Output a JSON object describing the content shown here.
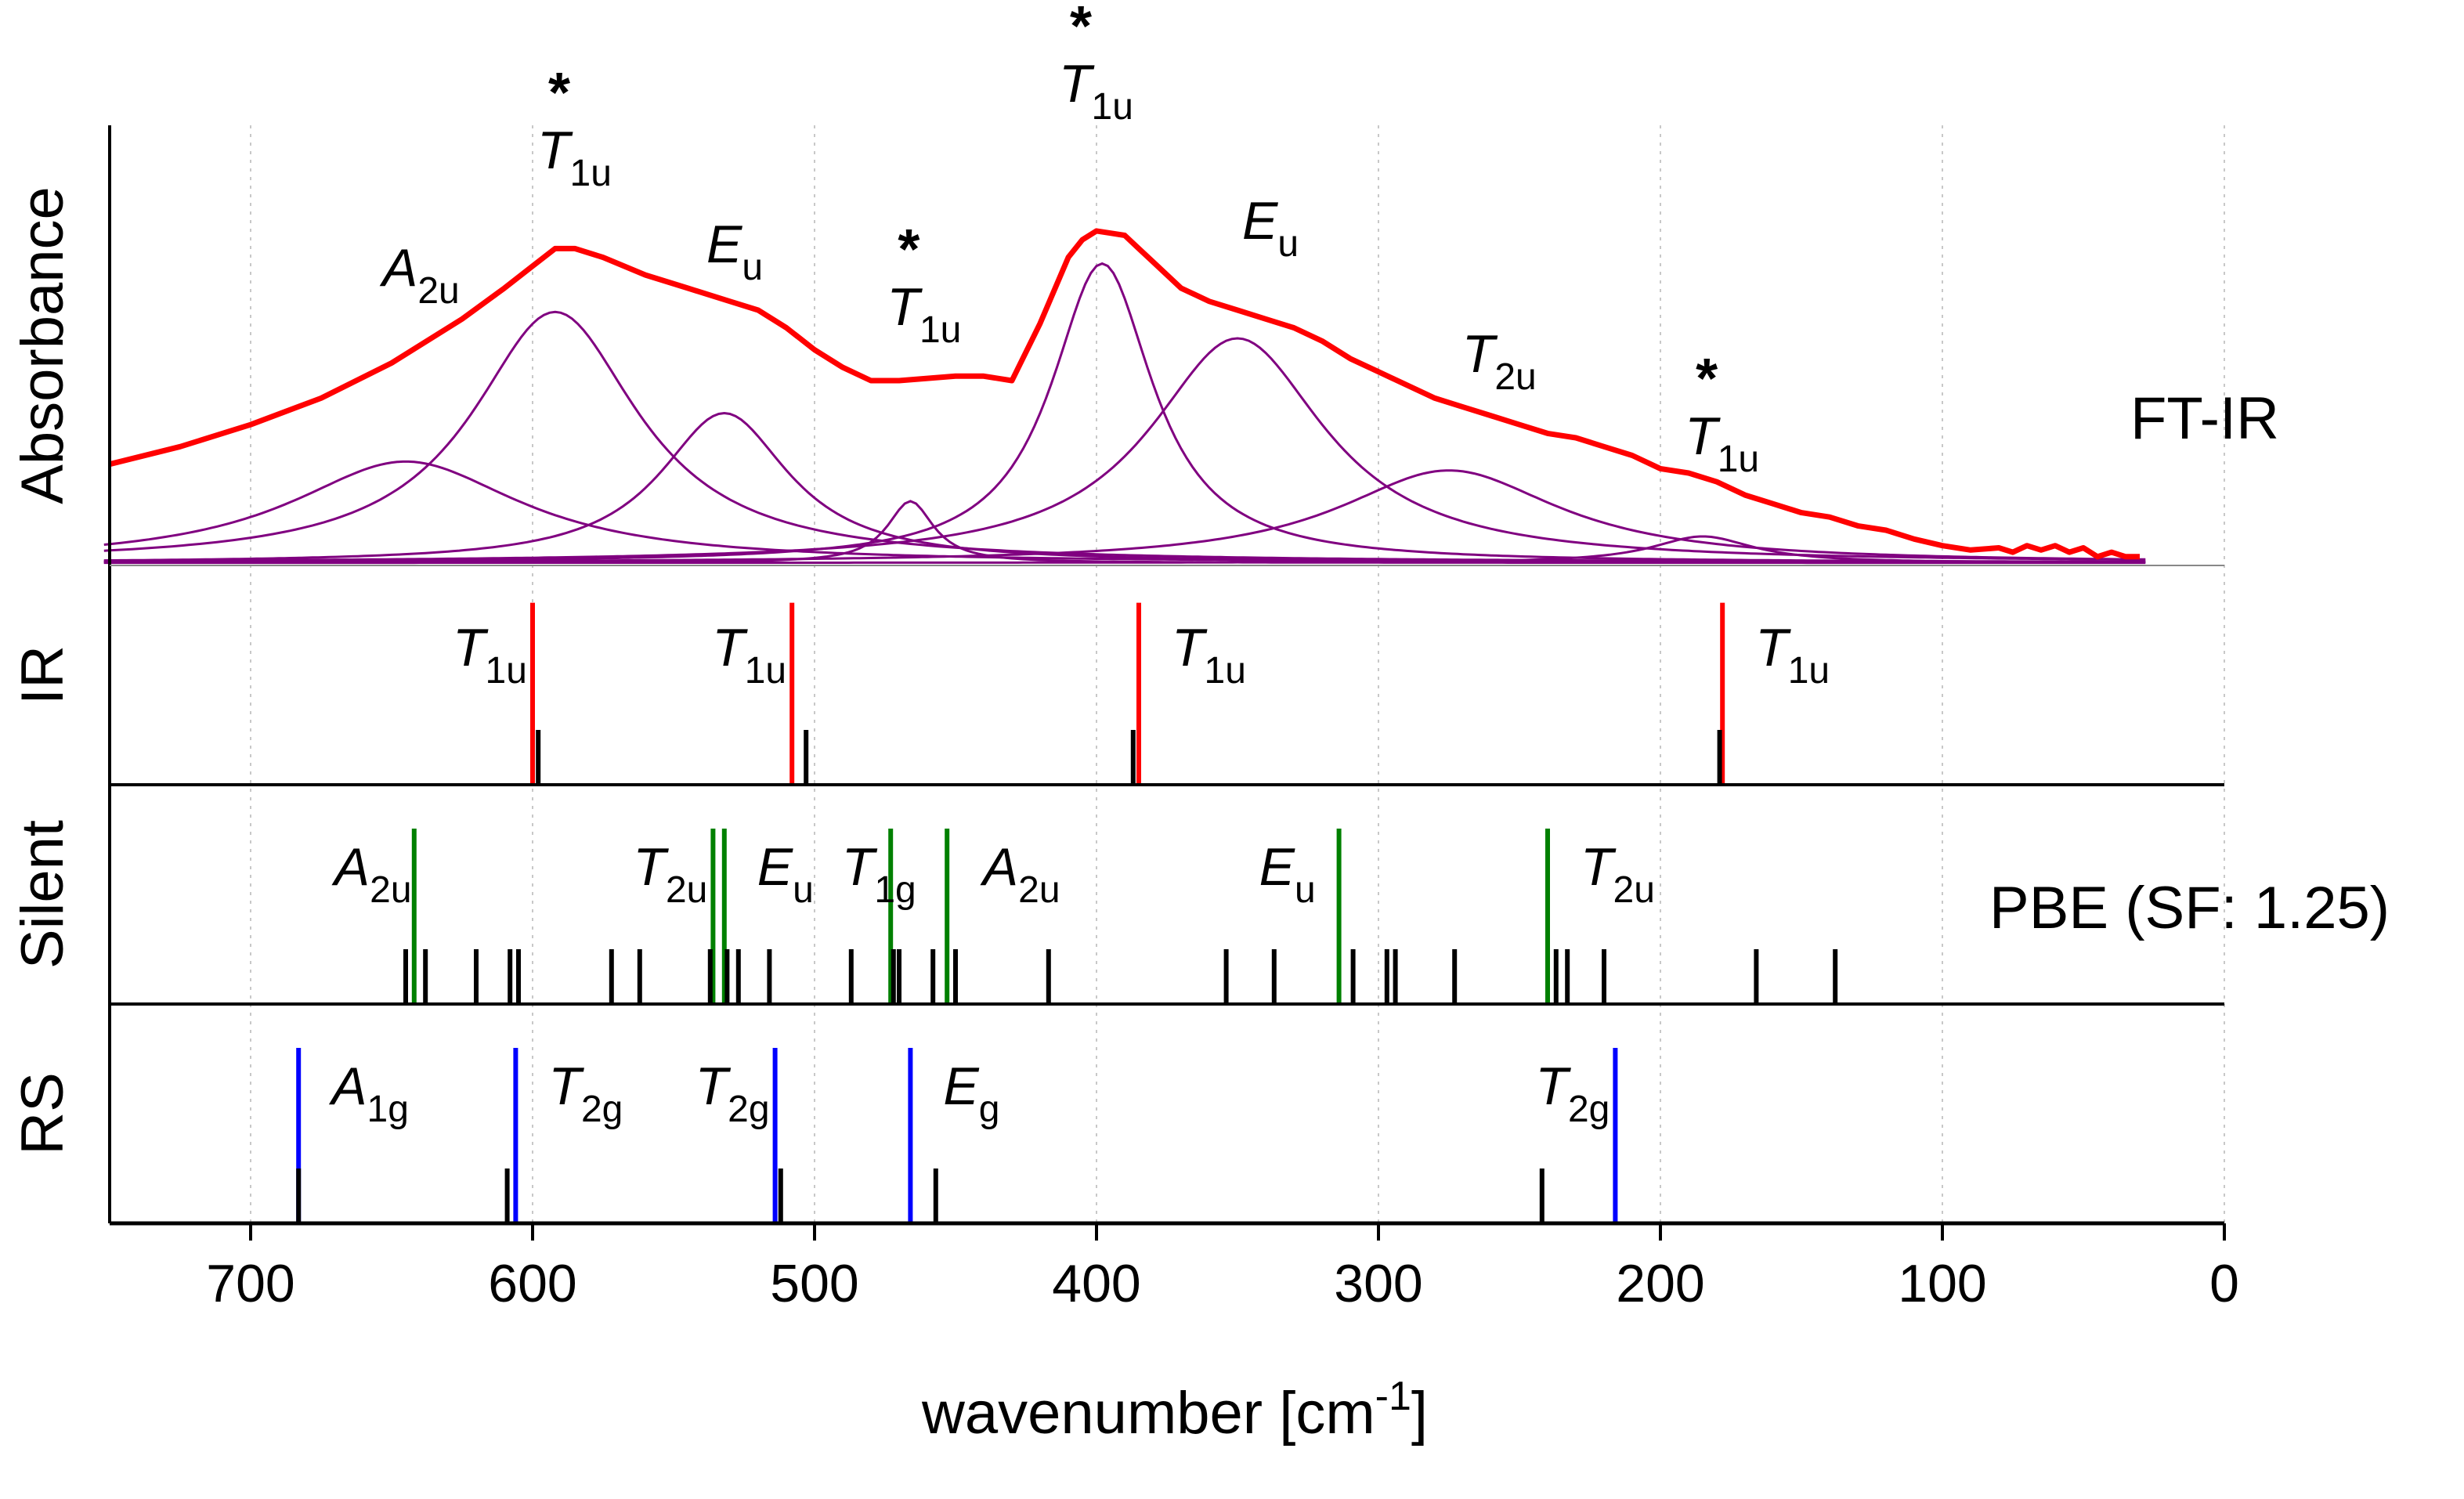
{
  "chart_data": {
    "type": "line",
    "xlabel": "wavenumber [cm",
    "xlabel_sup": "-1",
    "xlabel_end": "]",
    "xlim": [
      750,
      0
    ],
    "x_ticks": [
      700,
      600,
      500,
      400,
      300,
      200,
      100,
      0
    ],
    "panels": [
      {
        "name": "Absorbance",
        "annotation": "FT-IR",
        "ylim": [
          0,
          1.0
        ],
        "spectrum": {
          "name": "FT-IR",
          "color": "#ff0000",
          "x": [
            750,
            725,
            700,
            675,
            650,
            625,
            610,
            600,
            592,
            585,
            575,
            560,
            545,
            530,
            520,
            510,
            500,
            490,
            480,
            470,
            460,
            450,
            440,
            430,
            420,
            410,
            405,
            400,
            395,
            390,
            385,
            380,
            370,
            360,
            350,
            340,
            330,
            320,
            310,
            300,
            290,
            280,
            270,
            260,
            250,
            240,
            230,
            220,
            210,
            200,
            190,
            180,
            170,
            160,
            150,
            140,
            130,
            120,
            110,
            100,
            90,
            80,
            75,
            70,
            65,
            60,
            55,
            50,
            45,
            40,
            35,
            30
          ],
          "y": [
            0.23,
            0.27,
            0.32,
            0.38,
            0.46,
            0.56,
            0.63,
            0.68,
            0.72,
            0.72,
            0.7,
            0.66,
            0.63,
            0.6,
            0.58,
            0.54,
            0.49,
            0.45,
            0.42,
            0.42,
            0.425,
            0.43,
            0.43,
            0.42,
            0.55,
            0.7,
            0.74,
            0.76,
            0.755,
            0.75,
            0.72,
            0.69,
            0.63,
            0.6,
            0.58,
            0.56,
            0.54,
            0.51,
            0.47,
            0.44,
            0.41,
            0.38,
            0.36,
            0.34,
            0.32,
            0.3,
            0.29,
            0.27,
            0.25,
            0.22,
            0.21,
            0.19,
            0.16,
            0.14,
            0.12,
            0.11,
            0.09,
            0.08,
            0.06,
            0.045,
            0.035,
            0.04,
            0.03,
            0.045,
            0.035,
            0.045,
            0.03,
            0.04,
            0.02,
            0.03,
            0.02,
            0.02
          ]
        },
        "components": [
          {
            "name": "A2u",
            "center": 645,
            "height": 0.23,
            "width": 50,
            "color": "#800080"
          },
          {
            "name": "T1u",
            "center": 592,
            "height": 0.57,
            "width": 36,
            "color": "#800080"
          },
          {
            "name": "Eu",
            "center": 532,
            "height": 0.34,
            "width": 28,
            "color": "#800080"
          },
          {
            "name": "T1u",
            "center": 466,
            "height": 0.14,
            "width": 10,
            "color": "#800080"
          },
          {
            "name": "T1u",
            "center": 398,
            "height": 0.68,
            "width": 22,
            "color": "#800080"
          },
          {
            "name": "Eu",
            "center": 350,
            "height": 0.51,
            "width": 38,
            "color": "#800080"
          },
          {
            "name": "T2u",
            "center": 275,
            "height": 0.21,
            "width": 48,
            "color": "#800080"
          },
          {
            "name": "T1u",
            "center": 185,
            "height": 0.06,
            "width": 22,
            "color": "#800080"
          }
        ],
        "labels": [
          {
            "text": "A",
            "sub": "2u",
            "x": 645,
            "star": false
          },
          {
            "text": "T",
            "sub": "1u",
            "x": 590,
            "star": true
          },
          {
            "text": "E",
            "sub": "u",
            "x": 530,
            "star": false
          },
          {
            "text": "T",
            "sub": "1u",
            "x": 466,
            "star": true
          },
          {
            "text": "T",
            "sub": "1u",
            "x": 405,
            "star": true
          },
          {
            "text": "E",
            "sub": "u",
            "x": 340,
            "star": false
          },
          {
            "text": "T",
            "sub": "2u",
            "x": 262,
            "star": false
          },
          {
            "text": "T",
            "sub": "1u",
            "x": 183,
            "star": true
          }
        ]
      },
      {
        "name": "IR",
        "ylim": [
          0,
          1.0
        ],
        "calculated": {
          "color": "#ff0000",
          "x": [
            600,
            508,
            385,
            178
          ],
          "y": [
            0.83,
            0.83,
            0.83,
            0.83
          ]
        },
        "reference": {
          "color": "#000000",
          "x": [
            598,
            503,
            387,
            179
          ],
          "y": [
            0.25,
            0.25,
            0.25,
            0.25
          ]
        },
        "labels": [
          {
            "text": "T",
            "sub": "1u",
            "x": 620
          },
          {
            "text": "T",
            "sub": "1u",
            "x": 528
          },
          {
            "text": "T",
            "sub": "1u",
            "x": 365
          },
          {
            "text": "T",
            "sub": "1u",
            "x": 158
          }
        ]
      },
      {
        "name": "Silent",
        "annotation": "PBE (SF: 1.25)",
        "ylim": [
          0,
          1.0
        ],
        "calculated": {
          "color": "#008000",
          "x": [
            642,
            536,
            532,
            473,
            453,
            314,
            240
          ],
          "y": [
            0.8,
            0.8,
            0.8,
            0.8,
            0.8,
            0.8,
            0.8
          ]
        },
        "reference": {
          "color": "#000000",
          "x": [
            645,
            638,
            620,
            608,
            605,
            572,
            562,
            537,
            531,
            527,
            516,
            487,
            472,
            470,
            458,
            450,
            417,
            354,
            337,
            309,
            297,
            294,
            273,
            237,
            233,
            220,
            166,
            138
          ],
          "y": [
            0.25,
            0.25,
            0.25,
            0.25,
            0.25,
            0.25,
            0.25,
            0.25,
            0.25,
            0.25,
            0.25,
            0.25,
            0.25,
            0.25,
            0.25,
            0.25,
            0.25,
            0.25,
            0.25,
            0.25,
            0.25,
            0.25,
            0.25,
            0.25,
            0.25,
            0.25,
            0.25,
            0.25
          ]
        },
        "labels": [
          {
            "text": "A",
            "sub": "2u",
            "x": 662
          },
          {
            "text": "T",
            "sub": "2u",
            "x": 556
          },
          {
            "text": "E",
            "sub": "u",
            "x": 512
          },
          {
            "text": "T",
            "sub": "1g",
            "x": 482
          },
          {
            "text": "A",
            "sub": "2u",
            "x": 432
          },
          {
            "text": "E",
            "sub": "u",
            "x": 334
          },
          {
            "text": "T",
            "sub": "2u",
            "x": 220
          }
        ]
      },
      {
        "name": "RS",
        "ylim": [
          0,
          1.0
        ],
        "calculated": {
          "color": "#0000ff",
          "x": [
            683,
            606,
            514,
            466,
            216
          ],
          "y": [
            0.8,
            0.8,
            0.8,
            0.8,
            0.8
          ]
        },
        "reference": {
          "color": "#000000",
          "x": [
            683,
            609,
            512,
            457,
            242
          ],
          "y": [
            0.25,
            0.25,
            0.25,
            0.25,
            0.25
          ]
        },
        "labels": [
          {
            "text": "A",
            "sub": "1g",
            "x": 663
          },
          {
            "text": "T",
            "sub": "2g",
            "x": 586
          },
          {
            "text": "T",
            "sub": "2g",
            "x": 534
          },
          {
            "text": "E",
            "sub": "g",
            "x": 446
          },
          {
            "text": "T",
            "sub": "2g",
            "x": 236
          }
        ]
      }
    ]
  }
}
